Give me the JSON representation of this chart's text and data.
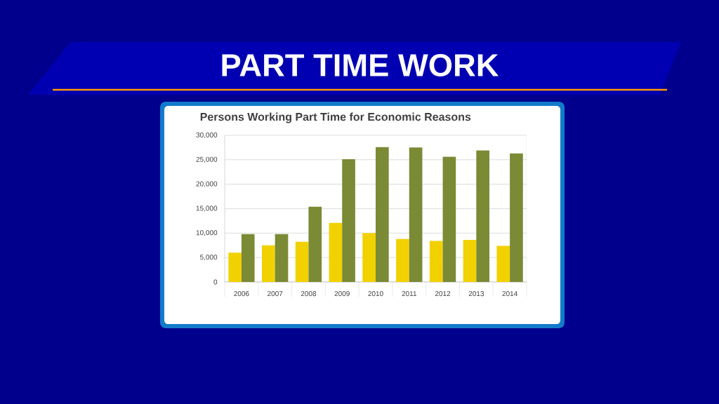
{
  "chart_data": {
    "type": "bar",
    "title": "PART TIME WORK",
    "subtitle": "Persons Working Part Time for Economic Reasons",
    "categories": [
      "2006",
      "2007",
      "2008",
      "2009",
      "2010",
      "2011",
      "2012",
      "2013",
      "2014"
    ],
    "series": [
      {
        "color": "#f2d100",
        "values": [
          6000,
          7500,
          8200,
          12100,
          10000,
          8800,
          8400,
          8600,
          7400
        ]
      },
      {
        "color": "#7a8a35",
        "values": [
          9800,
          9800,
          15400,
          25100,
          27600,
          27500,
          25600,
          26900,
          26300
        ]
      }
    ],
    "ylim": [
      0,
      30000
    ],
    "yticks": [
      {
        "value": 0,
        "label": "0"
      },
      {
        "value": 5000,
        "label": "5,000"
      },
      {
        "value": 10000,
        "label": "10,000"
      },
      {
        "value": 15000,
        "label": "15,000"
      },
      {
        "value": 20000,
        "label": "20,000"
      },
      {
        "value": 25000,
        "label": "25,000"
      },
      {
        "value": 30000,
        "label": "30,000"
      }
    ],
    "grid": "y"
  }
}
